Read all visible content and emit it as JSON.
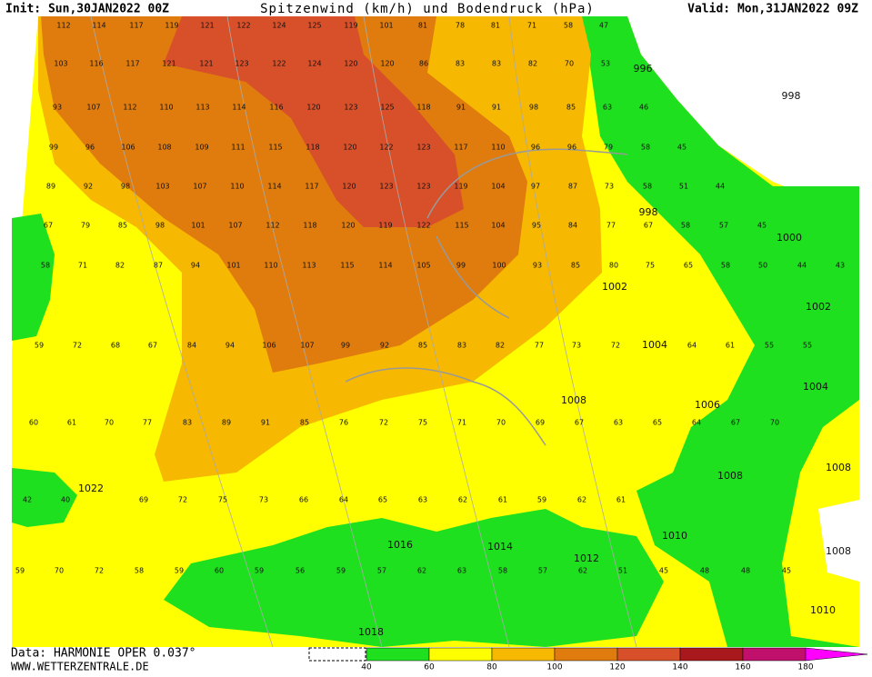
{
  "header": {
    "init": "Init: Sun,30JAN2022 00Z",
    "title": "Spitzenwind (km/h) und Bodendruck (hPa)",
    "valid": "Valid: Mon,31JAN2022 09Z"
  },
  "footer": {
    "data": "Data: HARMONIE OPER 0.037°",
    "url": "WWW.WETTERZENTRALE.DE"
  },
  "legend": {
    "ticks": [
      40,
      60,
      80,
      100,
      120,
      140,
      160,
      180
    ],
    "colors": [
      "#1ee01e",
      "#ffff00",
      "#f6b800",
      "#e07c0e",
      "#d8502a",
      "#a8181c",
      "#c0106c",
      "#ff00ff"
    ]
  },
  "map": {
    "pressure_labels": [
      996,
      998,
      998,
      1000,
      1002,
      1002,
      1004,
      1004,
      1006,
      1008,
      1008,
      1008,
      1010,
      1012,
      1014,
      1016,
      1018,
      1022,
      1008,
      1010
    ],
    "wind_rows": [
      [
        112,
        114,
        117,
        119,
        121,
        122,
        124,
        125,
        119,
        101,
        81,
        78,
        81,
        71,
        58,
        47
      ],
      [
        103,
        116,
        117,
        121,
        121,
        123,
        122,
        124,
        120,
        120,
        86,
        83,
        83,
        82,
        70,
        53
      ],
      [
        93,
        107,
        112,
        110,
        113,
        114,
        116,
        120,
        123,
        125,
        118,
        91,
        91,
        98,
        85,
        63,
        46
      ],
      [
        99,
        96,
        106,
        108,
        109,
        111,
        115,
        118,
        120,
        122,
        123,
        117,
        110,
        96,
        96,
        79,
        58,
        45
      ],
      [
        89,
        92,
        98,
        103,
        107,
        110,
        114,
        117,
        120,
        123,
        123,
        119,
        104,
        97,
        87,
        73,
        58,
        51,
        44
      ],
      [
        67,
        79,
        85,
        98,
        101,
        107,
        112,
        118,
        120,
        119,
        122,
        115,
        104,
        95,
        84,
        77,
        67,
        58,
        57,
        45
      ],
      [
        58,
        71,
        82,
        87,
        94,
        101,
        110,
        113,
        115,
        114,
        105,
        99,
        100,
        93,
        85,
        80,
        75,
        65,
        58,
        50,
        44,
        43
      ],
      [
        59,
        72,
        68,
        67,
        84,
        94,
        106,
        107,
        99,
        92,
        85,
        83,
        82,
        77,
        73,
        72,
        64,
        61,
        55,
        55
      ],
      [
        60,
        61,
        70,
        77,
        83,
        89,
        91,
        85,
        76,
        72,
        75,
        71,
        70,
        69,
        67,
        63,
        65,
        64,
        67,
        70
      ],
      [
        42,
        40,
        69,
        72,
        75,
        73,
        66,
        64,
        65,
        63,
        62,
        61,
        59,
        62,
        61
      ],
      [
        59,
        70,
        72,
        58,
        59,
        60,
        59,
        56,
        59,
        57,
        62,
        63,
        58,
        57,
        62,
        51,
        45,
        48,
        48,
        45
      ]
    ]
  }
}
